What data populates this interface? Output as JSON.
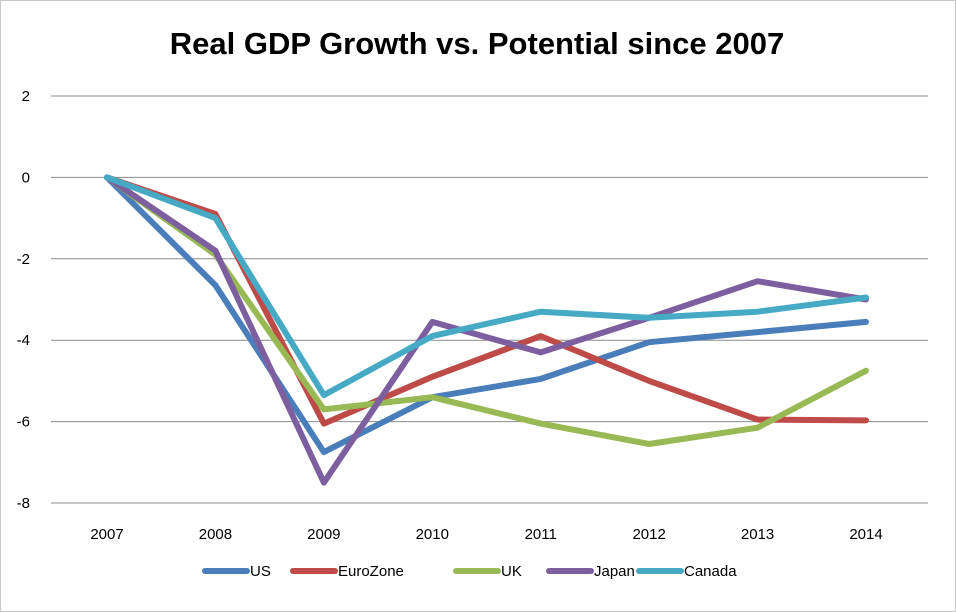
{
  "chart_data": {
    "type": "line",
    "title": "Real GDP Growth vs. Potential since 2007",
    "xlabel": "",
    "ylabel": "",
    "categories": [
      "2007",
      "2008",
      "2009",
      "2010",
      "2011",
      "2012",
      "2013",
      "2014"
    ],
    "yticks": [
      "2",
      "0",
      "-2",
      "-4",
      "-6",
      "-8"
    ],
    "ylim": [
      -8,
      2
    ],
    "grid": true,
    "legend_position": "bottom",
    "series": [
      {
        "name": "US",
        "color": "#4a7ebb",
        "values": [
          0,
          -2.65,
          -6.75,
          -5.4,
          -4.95,
          -4.05,
          -3.8,
          -3.55
        ]
      },
      {
        "name": "EuroZone",
        "color": "#be4b48",
        "values": [
          0,
          -0.9,
          -6.05,
          -4.9,
          -3.9,
          -5.0,
          -5.95,
          -5.97
        ]
      },
      {
        "name": "UK",
        "color": "#98b954",
        "values": [
          0,
          -1.9,
          -5.7,
          -5.4,
          -6.05,
          -6.55,
          -6.15,
          -4.75
        ]
      },
      {
        "name": "Japan",
        "color": "#7d5fa0",
        "values": [
          0,
          -1.8,
          -7.5,
          -3.55,
          -4.3,
          -3.45,
          -2.55,
          -3.0
        ]
      },
      {
        "name": "Canada",
        "color": "#46aac5",
        "values": [
          0,
          -1.0,
          -5.35,
          -3.9,
          -3.3,
          -3.45,
          -3.3,
          -2.95
        ]
      }
    ]
  }
}
